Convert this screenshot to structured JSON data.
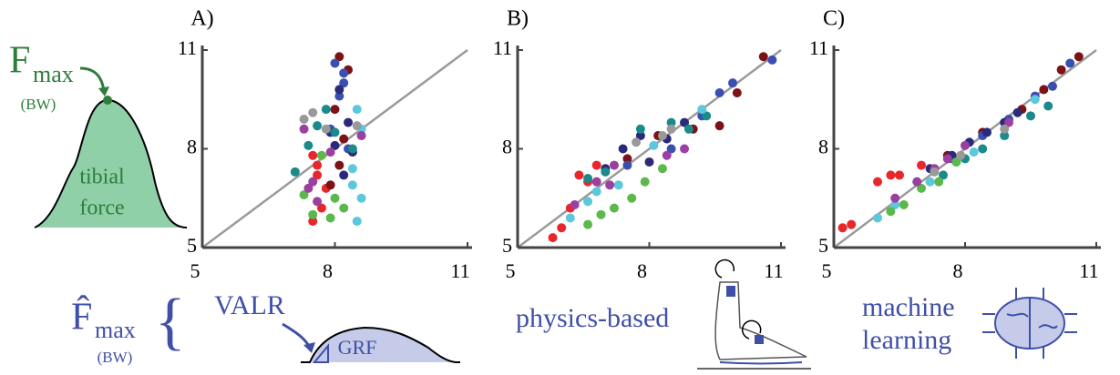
{
  "chart_data": [
    {
      "type": "scatter",
      "title": "A)",
      "xlim": [
        5,
        11
      ],
      "ylim": [
        5,
        11
      ],
      "xticks": [
        5,
        8,
        11
      ],
      "yticks": [
        5,
        8,
        11
      ],
      "identity_line": true,
      "series": [
        {
          "color": "#e8272a",
          "x": [
            7.5,
            7.6,
            7.7,
            7.5,
            7.8,
            7.6
          ],
          "y": [
            7.8,
            7.2,
            6.2,
            5.8,
            6.8,
            7.5
          ]
        },
        {
          "color": "#7b1216",
          "x": [
            8.1,
            8.3,
            8.0,
            8.2,
            7.9,
            8.1
          ],
          "y": [
            10.8,
            10.4,
            9.2,
            8.3,
            6.9,
            7.5
          ]
        },
        {
          "color": "#3b4fb0",
          "x": [
            8.0,
            8.2,
            8.1,
            7.9,
            8.3,
            8.2
          ],
          "y": [
            10.6,
            10.0,
            9.6,
            8.6,
            8.0,
            10.3
          ]
        },
        {
          "color": "#2b2a7a",
          "x": [
            8.1,
            8.3,
            8.0,
            8.4,
            8.2,
            7.9
          ],
          "y": [
            9.8,
            8.8,
            8.1,
            7.9,
            7.2,
            8.5
          ]
        },
        {
          "color": "#1a8a8a",
          "x": [
            7.1,
            7.4,
            7.8,
            8.0,
            8.4,
            7.6
          ],
          "y": [
            7.3,
            8.1,
            9.2,
            8.5,
            8.0,
            8.7
          ]
        },
        {
          "color": "#5bc8dc",
          "x": [
            8.5,
            8.6,
            8.4,
            8.6,
            8.5,
            8.4
          ],
          "y": [
            9.2,
            8.6,
            7.4,
            6.5,
            5.8,
            6.9
          ]
        },
        {
          "color": "#5bb84a",
          "x": [
            7.3,
            7.5,
            7.9,
            8.0,
            7.7,
            8.2
          ],
          "y": [
            6.6,
            6.0,
            5.9,
            6.5,
            7.8,
            6.2
          ]
        },
        {
          "color": "#9b3fa0",
          "x": [
            7.3,
            7.5,
            7.6,
            8.6,
            7.4,
            7.9
          ],
          "y": [
            8.6,
            7.0,
            6.4,
            8.4,
            6.8,
            7.9
          ]
        },
        {
          "color": "#999999",
          "x": [
            7.3,
            7.5,
            8.5,
            7.8
          ],
          "y": [
            8.9,
            9.1,
            8.7,
            8.6
          ]
        }
      ]
    },
    {
      "type": "scatter",
      "title": "B)",
      "xlim": [
        5,
        11
      ],
      "ylim": [
        5,
        11
      ],
      "xticks": [
        5,
        8,
        11
      ],
      "yticks": [
        5,
        8,
        11
      ],
      "identity_line": true,
      "series": [
        {
          "color": "#e8272a",
          "x": [
            5.8,
            6.0,
            6.2,
            6.4,
            6.6,
            6.8
          ],
          "y": [
            5.3,
            5.6,
            6.2,
            7.2,
            7.0,
            7.5
          ]
        },
        {
          "color": "#7b1216",
          "x": [
            7.5,
            8.2,
            9.0,
            9.6,
            10.0,
            10.6
          ],
          "y": [
            7.7,
            8.4,
            8.6,
            8.7,
            9.7,
            10.8
          ]
        },
        {
          "color": "#3b4fb0",
          "x": [
            7.5,
            8.5,
            9.2,
            9.6,
            9.9,
            10.8
          ],
          "y": [
            7.5,
            8.0,
            9.0,
            9.7,
            10.0,
            10.7
          ]
        },
        {
          "color": "#2b2a7a",
          "x": [
            7.0,
            7.4,
            7.8,
            8.0,
            8.4,
            8.8
          ],
          "y": [
            7.4,
            8.0,
            8.4,
            7.6,
            8.3,
            8.8
          ]
        },
        {
          "color": "#1a8a8a",
          "x": [
            6.6,
            7.0,
            7.8,
            8.5,
            8.9,
            9.3
          ],
          "y": [
            7.1,
            7.3,
            8.6,
            8.8,
            8.6,
            9.0
          ]
        },
        {
          "color": "#5bc8dc",
          "x": [
            6.2,
            6.6,
            6.8,
            7.3,
            8.1,
            9.2
          ],
          "y": [
            5.9,
            6.4,
            6.7,
            6.9,
            8.1,
            9.2
          ]
        },
        {
          "color": "#5bb84a",
          "x": [
            6.6,
            6.9,
            7.2,
            7.6,
            7.9,
            8.3
          ],
          "y": [
            5.7,
            6.0,
            6.2,
            6.5,
            7.0,
            7.4
          ]
        },
        {
          "color": "#9b3fa0",
          "x": [
            6.3,
            6.8,
            7.2,
            8.4,
            8.8,
            7.1
          ],
          "y": [
            6.3,
            7.0,
            7.5,
            7.8,
            8.0,
            6.9
          ]
        },
        {
          "color": "#999999",
          "x": [
            7.7,
            8.5,
            8.3
          ],
          "y": [
            8.2,
            8.6,
            8.4
          ]
        }
      ]
    },
    {
      "type": "scatter",
      "title": "C)",
      "xlim": [
        5,
        11
      ],
      "ylim": [
        5,
        11
      ],
      "xticks": [
        5,
        8,
        11
      ],
      "yticks": [
        5,
        8,
        11
      ],
      "identity_line": true,
      "series": [
        {
          "color": "#e8272a",
          "x": [
            5.2,
            5.4,
            6.0,
            6.3,
            6.5,
            7.0
          ],
          "y": [
            5.6,
            5.7,
            7.0,
            7.2,
            7.2,
            7.5
          ]
        },
        {
          "color": "#7b1216",
          "x": [
            7.6,
            8.4,
            9.3,
            9.8,
            10.2,
            10.6
          ],
          "y": [
            7.8,
            8.5,
            9.2,
            9.8,
            10.4,
            10.8
          ]
        },
        {
          "color": "#3b4fb0",
          "x": [
            7.7,
            8.4,
            9.0,
            9.6,
            10.0,
            10.4
          ],
          "y": [
            7.7,
            8.4,
            8.9,
            9.6,
            9.9,
            10.6
          ]
        },
        {
          "color": "#2b2a7a",
          "x": [
            7.2,
            7.7,
            8.1,
            8.5,
            8.9,
            9.2
          ],
          "y": [
            7.4,
            7.8,
            8.2,
            8.5,
            8.8,
            9.1
          ]
        },
        {
          "color": "#1a8a8a",
          "x": [
            7.5,
            8.0,
            8.4,
            8.9,
            9.5,
            9.9
          ],
          "y": [
            7.2,
            7.7,
            8.0,
            8.4,
            9.0,
            9.3
          ]
        },
        {
          "color": "#5bc8dc",
          "x": [
            6.0,
            6.4,
            7.2,
            7.8,
            8.2,
            9.6
          ],
          "y": [
            5.9,
            6.3,
            7.0,
            7.6,
            7.9,
            9.5
          ]
        },
        {
          "color": "#5bb84a",
          "x": [
            6.3,
            6.6,
            7.0,
            7.4,
            7.8
          ],
          "y": [
            6.1,
            6.3,
            6.8,
            7.0,
            7.6
          ]
        },
        {
          "color": "#9b3fa0",
          "x": [
            6.4,
            6.9,
            7.3,
            7.6,
            8.0,
            9.0
          ],
          "y": [
            6.5,
            7.0,
            7.4,
            7.7,
            8.1,
            8.8
          ]
        },
        {
          "color": "#999999",
          "x": [
            7.3,
            7.9,
            8.9
          ],
          "y": [
            7.3,
            7.8,
            8.6
          ]
        }
      ]
    }
  ],
  "measured": {
    "symbol": "F",
    "subscript": "max",
    "unit": "(BW)",
    "curve_line_1": "tibial",
    "curve_line_2": "force"
  },
  "estimated": {
    "symbol": "F̂",
    "subscript": "max",
    "unit": "(BW)",
    "brace": "{",
    "valr": "VALR",
    "grf": "GRF"
  },
  "methods": {
    "physics": "physics-based",
    "ml_line_1": "machine",
    "ml_line_2": "learning"
  }
}
